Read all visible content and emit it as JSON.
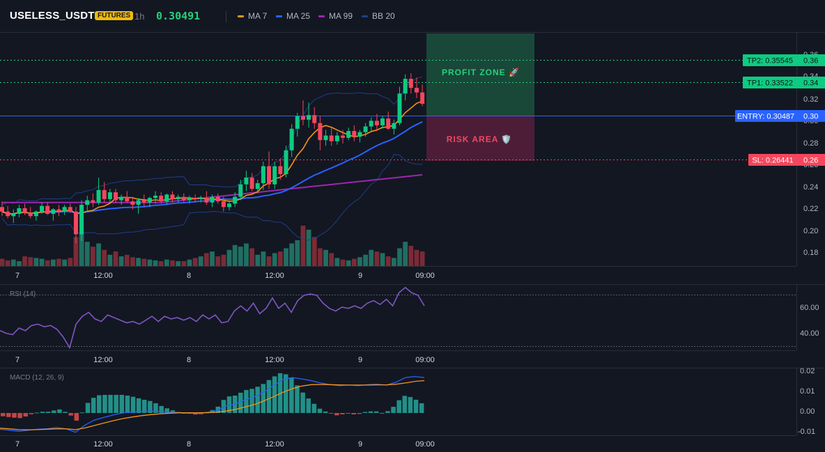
{
  "header": {
    "symbol": "USELESS_USDT",
    "badge": "FUTURES",
    "timeframe": "1h",
    "price": "0.30491",
    "legend": [
      {
        "label": "MA 7",
        "color": "#f7931a"
      },
      {
        "label": "MA 25",
        "color": "#2962ff"
      },
      {
        "label": "MA 99",
        "color": "#9c27b0"
      },
      {
        "label": "BB 20",
        "color": "#1e3f8a"
      }
    ]
  },
  "colors": {
    "up": "#26a69a",
    "up_bright": "#0ecb81",
    "down": "#f6465d",
    "ma7": "#f7931a",
    "ma25": "#2962ff",
    "ma99": "#9c27b0",
    "bb": "#1e3f8a",
    "rsi": "#7e57c2",
    "macd": "#2962ff",
    "signal": "#f7931a"
  },
  "levels": {
    "tp2": {
      "label": "TP2: 0.35545",
      "value": 0.35545,
      "axis": "0.36"
    },
    "tp1": {
      "label": "TP1: 0.33522",
      "value": 0.33522,
      "axis": "0.34"
    },
    "entry": {
      "label": "ENTRY: 0.30487",
      "value": 0.30487,
      "axis": "0.30"
    },
    "sl": {
      "label": "SL: 0.26441",
      "value": 0.26441,
      "axis": "0.26"
    }
  },
  "zones": {
    "profit": "PROFIT ZONE 🚀",
    "risk": "RISK AREA 🛡️"
  },
  "price_axis": [
    "0.36",
    "0.34",
    "0.32",
    "0.30",
    "0.28",
    "0.26",
    "0.24",
    "0.22",
    "0.20",
    "0.18"
  ],
  "time_axis": [
    "7",
    "12:00",
    "8",
    "12:00",
    "9",
    "09:00"
  ],
  "rsi": {
    "label": "RSI (14)",
    "ticks": [
      "60.00",
      "40.00"
    ]
  },
  "macd": {
    "label": "MACD (12, 26, 9)",
    "ticks": [
      "0.02",
      "0.01",
      "0.00",
      "-0.01"
    ]
  },
  "chart_data": {
    "type": "candlestick",
    "ohlc": [
      [
        0.222,
        0.227,
        0.214,
        0.218
      ],
      [
        0.218,
        0.223,
        0.212,
        0.214
      ],
      [
        0.214,
        0.22,
        0.208,
        0.216
      ],
      [
        0.216,
        0.224,
        0.213,
        0.221
      ],
      [
        0.221,
        0.225,
        0.215,
        0.217
      ],
      [
        0.217,
        0.222,
        0.212,
        0.214
      ],
      [
        0.214,
        0.219,
        0.21,
        0.218
      ],
      [
        0.218,
        0.226,
        0.216,
        0.223
      ],
      [
        0.223,
        0.226,
        0.215,
        0.216
      ],
      [
        0.216,
        0.221,
        0.21,
        0.22
      ],
      [
        0.22,
        0.224,
        0.214,
        0.218
      ],
      [
        0.218,
        0.224,
        0.215,
        0.222
      ],
      [
        0.222,
        0.225,
        0.217,
        0.218
      ],
      [
        0.218,
        0.222,
        0.19,
        0.198
      ],
      [
        0.198,
        0.228,
        0.192,
        0.224
      ],
      [
        0.224,
        0.232,
        0.218,
        0.228
      ],
      [
        0.228,
        0.234,
        0.222,
        0.226
      ],
      [
        0.226,
        0.248,
        0.224,
        0.237
      ],
      [
        0.237,
        0.244,
        0.226,
        0.229
      ],
      [
        0.229,
        0.238,
        0.226,
        0.235
      ],
      [
        0.235,
        0.238,
        0.226,
        0.228
      ],
      [
        0.228,
        0.233,
        0.224,
        0.231
      ],
      [
        0.231,
        0.236,
        0.226,
        0.227
      ],
      [
        0.227,
        0.231,
        0.22,
        0.224
      ],
      [
        0.224,
        0.23,
        0.216,
        0.228
      ],
      [
        0.228,
        0.233,
        0.222,
        0.226
      ],
      [
        0.226,
        0.231,
        0.222,
        0.23
      ],
      [
        0.23,
        0.236,
        0.225,
        0.232
      ],
      [
        0.232,
        0.235,
        0.225,
        0.227
      ],
      [
        0.227,
        0.234,
        0.224,
        0.233
      ],
      [
        0.233,
        0.236,
        0.226,
        0.229
      ],
      [
        0.229,
        0.233,
        0.226,
        0.231
      ],
      [
        0.231,
        0.234,
        0.226,
        0.228
      ],
      [
        0.228,
        0.232,
        0.225,
        0.23
      ],
      [
        0.23,
        0.233,
        0.226,
        0.229
      ],
      [
        0.229,
        0.232,
        0.226,
        0.23
      ],
      [
        0.23,
        0.236,
        0.224,
        0.226
      ],
      [
        0.226,
        0.233,
        0.222,
        0.231
      ],
      [
        0.231,
        0.234,
        0.225,
        0.227
      ],
      [
        0.227,
        0.231,
        0.218,
        0.222
      ],
      [
        0.222,
        0.228,
        0.219,
        0.225
      ],
      [
        0.225,
        0.235,
        0.222,
        0.231
      ],
      [
        0.231,
        0.246,
        0.228,
        0.242
      ],
      [
        0.242,
        0.254,
        0.236,
        0.248
      ],
      [
        0.248,
        0.252,
        0.236,
        0.238
      ],
      [
        0.238,
        0.246,
        0.234,
        0.243
      ],
      [
        0.243,
        0.262,
        0.237,
        0.258
      ],
      [
        0.258,
        0.271,
        0.238,
        0.242
      ],
      [
        0.242,
        0.262,
        0.238,
        0.258
      ],
      [
        0.258,
        0.265,
        0.246,
        0.251
      ],
      [
        0.251,
        0.276,
        0.248,
        0.272
      ],
      [
        0.272,
        0.295,
        0.266,
        0.291
      ],
      [
        0.291,
        0.305,
        0.284,
        0.302
      ],
      [
        0.302,
        0.316,
        0.294,
        0.299
      ],
      [
        0.299,
        0.314,
        0.292,
        0.303
      ],
      [
        0.303,
        0.31,
        0.291,
        0.296
      ],
      [
        0.296,
        0.302,
        0.272,
        0.281
      ],
      [
        0.281,
        0.29,
        0.276,
        0.285
      ],
      [
        0.285,
        0.292,
        0.276,
        0.28
      ],
      [
        0.28,
        0.288,
        0.277,
        0.285
      ],
      [
        0.285,
        0.29,
        0.278,
        0.283
      ],
      [
        0.283,
        0.292,
        0.281,
        0.289
      ],
      [
        0.289,
        0.294,
        0.28,
        0.284
      ],
      [
        0.284,
        0.29,
        0.279,
        0.288
      ],
      [
        0.288,
        0.296,
        0.284,
        0.293
      ],
      [
        0.293,
        0.301,
        0.289,
        0.298
      ],
      [
        0.298,
        0.304,
        0.289,
        0.294
      ],
      [
        0.294,
        0.302,
        0.291,
        0.3
      ],
      [
        0.3,
        0.306,
        0.29,
        0.291
      ],
      [
        0.291,
        0.299,
        0.286,
        0.296
      ],
      [
        0.296,
        0.328,
        0.294,
        0.322
      ],
      [
        0.322,
        0.339,
        0.316,
        0.335
      ],
      [
        0.335,
        0.34,
        0.322,
        0.327
      ],
      [
        0.327,
        0.336,
        0.318,
        0.323
      ],
      [
        0.323,
        0.33,
        0.311,
        0.313
      ]
    ],
    "volume": [
      9,
      7,
      8,
      6,
      12,
      11,
      10,
      9,
      7,
      8,
      9,
      8,
      10,
      36,
      40,
      30,
      24,
      28,
      20,
      14,
      18,
      12,
      14,
      11,
      10,
      9,
      8,
      7,
      6,
      8,
      7,
      6,
      6,
      8,
      10,
      12,
      16,
      18,
      12,
      14,
      20,
      26,
      24,
      28,
      22,
      14,
      18,
      12,
      16,
      18,
      22,
      28,
      32,
      50,
      45,
      36,
      22,
      20,
      16,
      10,
      8,
      7,
      9,
      11,
      14,
      20,
      18,
      16,
      12,
      10,
      22,
      30,
      25,
      20,
      18
    ],
    "volume_units": "relative",
    "rsi_values": [
      43,
      41,
      40,
      45,
      43,
      47,
      48,
      46,
      47,
      44,
      38,
      30,
      48,
      54,
      57,
      52,
      50,
      55,
      53,
      51,
      49,
      50,
      48,
      51,
      54,
      50,
      54,
      52,
      53,
      51,
      53,
      50,
      55,
      52,
      55,
      49,
      50,
      58,
      62,
      58,
      64,
      56,
      60,
      68,
      60,
      64,
      57,
      66,
      70,
      71,
      70,
      64,
      60,
      58,
      61,
      60,
      62,
      60,
      64,
      66,
      63,
      67,
      62,
      72,
      76,
      72,
      70,
      62
    ],
    "macd_line": [
      -0.008,
      -0.0085,
      -0.009,
      -0.0085,
      -0.008,
      -0.0078,
      -0.0072,
      -0.0078,
      -0.0095,
      -0.006,
      -0.0035,
      -0.0022,
      -0.001,
      0.0,
      0.0005,
      0.0008,
      0.001,
      0.0007,
      0.0004,
      0.0002,
      0.0,
      -0.0002,
      0.0003,
      0.0012,
      0.0035,
      0.0045,
      0.0065,
      0.008,
      0.0105,
      0.0135,
      0.0165,
      0.0175,
      0.0168,
      0.016,
      0.0148,
      0.014,
      0.0135,
      0.0138,
      0.0135,
      0.014,
      0.0142,
      0.0138,
      0.0152,
      0.0175,
      0.018,
      0.0175
    ],
    "signal_line": [
      -0.0075,
      -0.0078,
      -0.0082,
      -0.0083,
      -0.0082,
      -0.008,
      -0.0078,
      -0.0078,
      -0.0082,
      -0.0074,
      -0.0062,
      -0.005,
      -0.0038,
      -0.0028,
      -0.002,
      -0.0013,
      -0.0008,
      -0.0004,
      -0.0001,
      0.0001,
      0.0001,
      0.0001,
      0.0002,
      0.0004,
      0.001,
      0.0018,
      0.003,
      0.0042,
      0.006,
      0.008,
      0.0102,
      0.012,
      0.0133,
      0.014,
      0.0141,
      0.014,
      0.0139,
      0.0138,
      0.0138,
      0.0138,
      0.0139,
      0.0139,
      0.0142,
      0.0148,
      0.0156,
      0.016
    ],
    "yrange_price": [
      0.17,
      0.375
    ],
    "yrange_rsi": [
      28,
      78
    ],
    "yrange_macd": [
      -0.011,
      0.022
    ]
  }
}
